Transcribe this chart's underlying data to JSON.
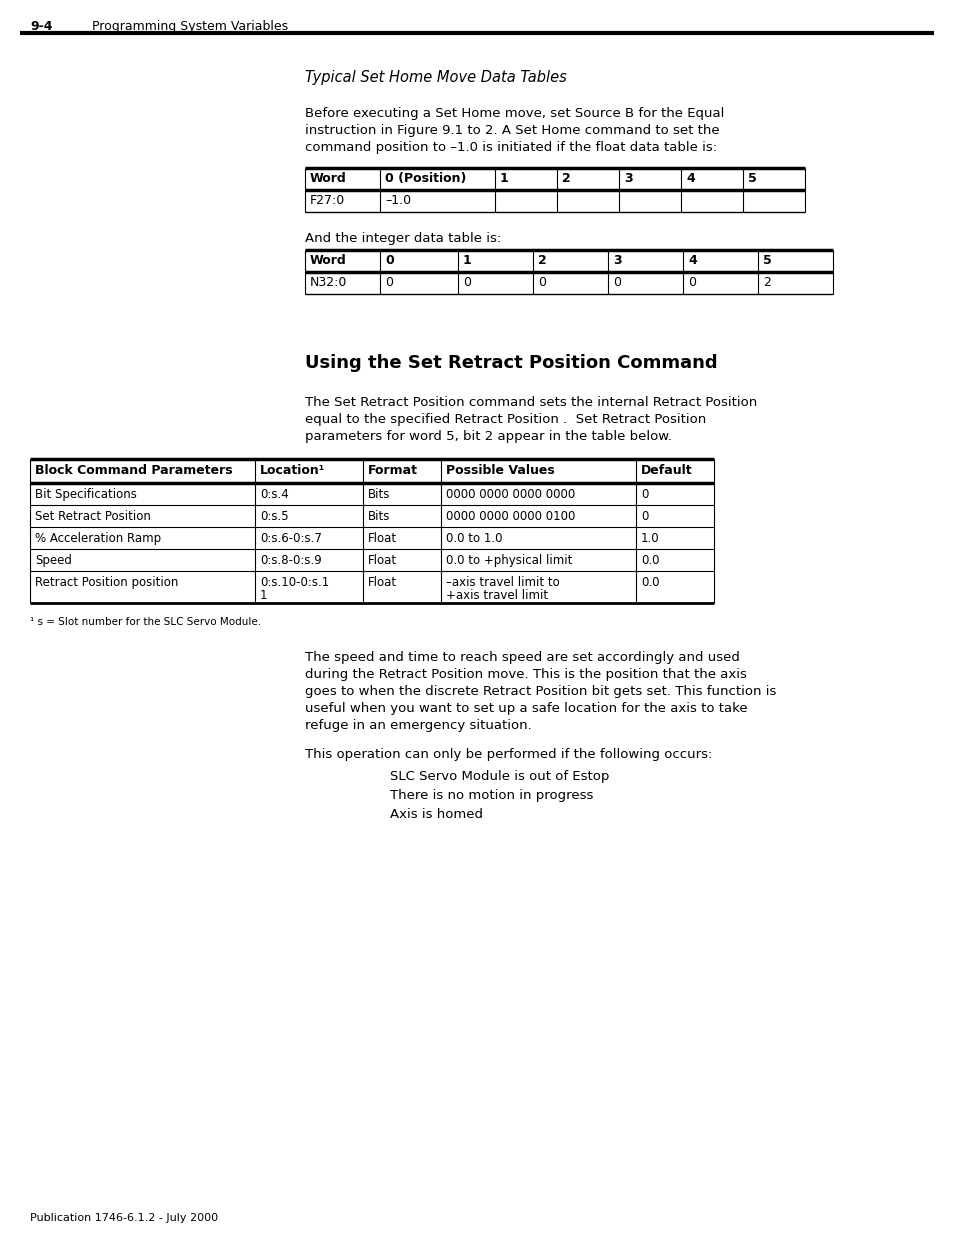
{
  "page_header_num": "9-4",
  "page_header_text": "Programming System Variables",
  "section_title": "Typical Set Home Move Data Tables",
  "para1_lines": [
    "Before executing a Set Home move, set Source B for the Equal",
    "instruction in Figure 9.1 to 2. A Set Home command to set the",
    "command position to –1.0 is initiated if the float data table is:"
  ],
  "table1_headers": [
    "Word",
    "0 (Position)",
    "1",
    "2",
    "3",
    "4",
    "5"
  ],
  "table1_rows": [
    [
      "F27:0",
      "–1.0",
      "",
      "",
      "",
      "",
      ""
    ]
  ],
  "para2": "And the integer data table is:",
  "table2_headers": [
    "Word",
    "0",
    "1",
    "2",
    "3",
    "4",
    "5"
  ],
  "table2_rows": [
    [
      "N32:0",
      "0",
      "0",
      "0",
      "0",
      "0",
      "2"
    ]
  ],
  "section2_title": "Using the Set Retract Position Command",
  "para3_lines": [
    "The Set Retract Position command sets the internal Retract Position",
    "equal to the specified Retract Position .  Set Retract Position",
    "parameters for word 5, bit 2 appear in the table below."
  ],
  "table3_headers": [
    "Block Command Parameters",
    "Location¹",
    "Format",
    "Possible Values",
    "Default"
  ],
  "table3_rows": [
    [
      "Bit Specifications",
      "0:s.4",
      "Bits",
      "0000 0000 0000 0000",
      "0"
    ],
    [
      "Set Retract Position",
      "0:s.5",
      "Bits",
      "0000 0000 0000 0100",
      "0"
    ],
    [
      "% Acceleration Ramp",
      "0:s.6-0:s.7",
      "Float",
      "0.0 to 1.0",
      "1.0"
    ],
    [
      "Speed",
      "0:s.8-0:s.9",
      "Float",
      "0.0 to +physical limit",
      "0.0"
    ],
    [
      "Retract Position position",
      "0:s.10-0:s.1\n1",
      "Float",
      "–axis travel limit to\n+axis travel limit",
      "0.0"
    ]
  ],
  "footnote": "¹ s = Slot number for the SLC Servo Module.",
  "para4_lines": [
    "The speed and time to reach speed are set accordingly and used",
    "during the Retract Position move. This is the position that the axis",
    "goes to when the discrete Retract Position bit gets set. This function is",
    "useful when you want to set up a safe location for the axis to take",
    "refuge in an emergency situation."
  ],
  "para5": "This operation can only be performed if the following occurs:",
  "bullets": [
    "SLC Servo Module is out of Estop",
    "There is no motion in progress",
    "Axis is homed"
  ],
  "footer": "Publication 1746-6.1.2 - July 2000",
  "bg_color": "#ffffff"
}
